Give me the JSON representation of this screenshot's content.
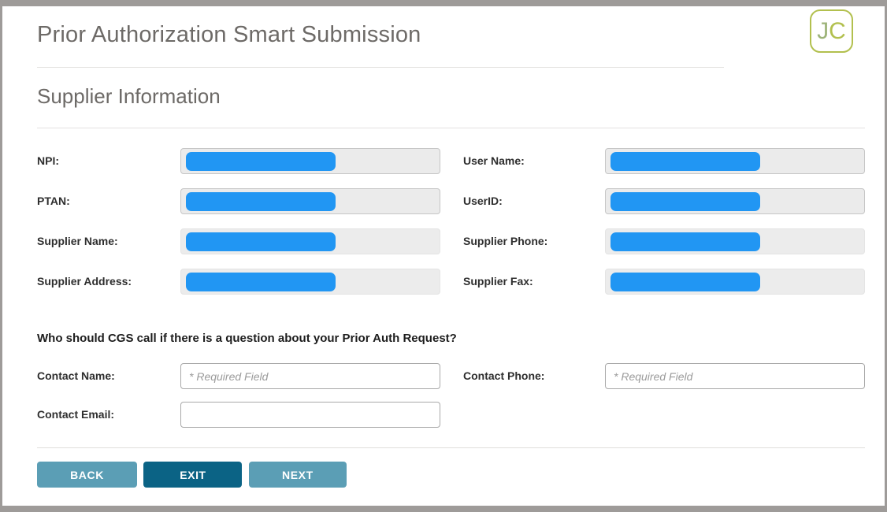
{
  "header": {
    "title": "Prior Authorization Smart Submission",
    "badge": {
      "j": "J",
      "c": "C"
    }
  },
  "supplier": {
    "heading": "Supplier Information",
    "values_redacted": true,
    "rows": [
      {
        "left_label": "NPI:",
        "right_label": "User Name:"
      },
      {
        "left_label": "PTAN:",
        "right_label": "UserID:"
      },
      {
        "left_label": "Supplier Name:",
        "right_label": "Supplier Phone:"
      },
      {
        "left_label": "Supplier Address:",
        "right_label": "Supplier Fax:"
      }
    ]
  },
  "contact": {
    "question": "Who should CGS call if there is a question about your Prior Auth Request?",
    "name": {
      "label": "Contact Name:",
      "placeholder": "* Required Field",
      "value": ""
    },
    "phone": {
      "label": "Contact Phone:",
      "placeholder": "* Required Field",
      "value": ""
    },
    "email": {
      "label": "Contact Email:",
      "placeholder": "",
      "value": ""
    }
  },
  "buttons": {
    "back": "BACK",
    "exit": "EXIT",
    "next": "NEXT"
  },
  "colors": {
    "redaction_bar": "#2196f3",
    "button_teal_light": "#5b9eb5",
    "button_teal_dark": "#0b6385",
    "badge_green": "#b2c04e",
    "heading_gray": "#6d6a67",
    "frame_gray": "#9e9b99"
  }
}
